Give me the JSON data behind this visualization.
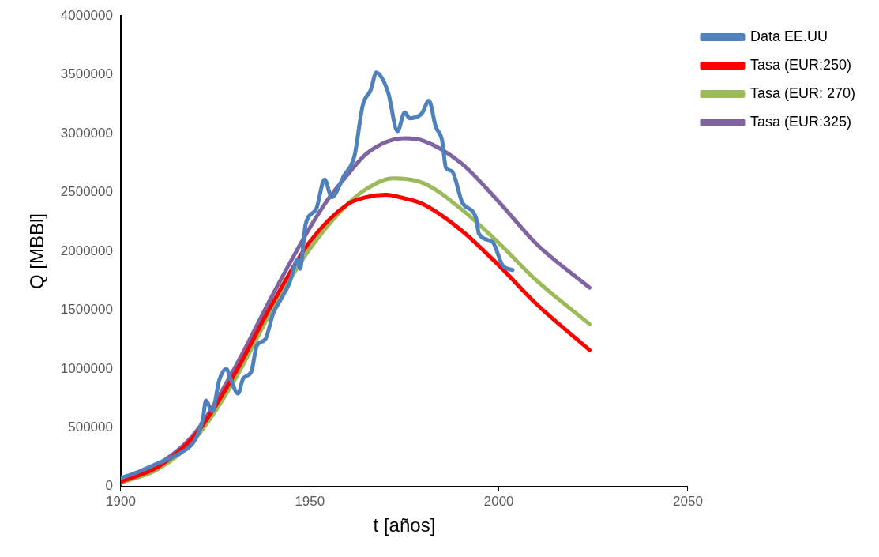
{
  "chart_data": {
    "type": "line",
    "xlabel": "t [años]",
    "ylabel": "Q [MBBl]",
    "xlim": [
      1900,
      2050
    ],
    "xticks": [
      1900,
      1950,
      2000,
      2050
    ],
    "ylim": [
      0,
      4000000
    ],
    "yticks": [
      0,
      500000,
      1000000,
      1500000,
      2000000,
      2500000,
      3000000,
      3500000,
      4000000
    ],
    "grid": false,
    "legend": "top right",
    "marker": "none",
    "line_style": "solid",
    "series": [
      {
        "name": "Data EE.UU",
        "color": "#4f81bd",
        "x": [
          1900,
          1905,
          1910,
          1916,
          1919.5,
          1921.7,
          1922.5,
          1924.2,
          1926,
          1927.9,
          1929.2,
          1931,
          1932.4,
          1934.5,
          1936,
          1938.2,
          1940.3,
          1942.5,
          1944.6,
          1946.8,
          1947.4,
          1948.9,
          1951.7,
          1953.9,
          1955.8,
          1959,
          1961.8,
          1964,
          1966.1,
          1967.6,
          1969.3,
          1970.8,
          1973.2,
          1975.1,
          1976.4,
          1979.6,
          1981.5,
          1983.3,
          1985,
          1986,
          1987.6,
          1990.4,
          1994,
          1994.7,
          1998.3,
          2001,
          2003.6
        ],
        "values": [
          70000,
          130000,
          200000,
          290000,
          390000,
          570000,
          730000,
          640000,
          900000,
          1000000,
          900000,
          790000,
          920000,
          975000,
          1200000,
          1250000,
          1470000,
          1600000,
          1730000,
          1930000,
          1850000,
          2230000,
          2360000,
          2610000,
          2460000,
          2640000,
          2810000,
          3240000,
          3370000,
          3520000,
          3460000,
          3340000,
          3020000,
          3180000,
          3130000,
          3170000,
          3280000,
          3060000,
          2940000,
          2710000,
          2680000,
          2410000,
          2280000,
          2150000,
          2080000,
          1880000,
          1840000
        ]
      },
      {
        "name": "Tasa (EUR:250)",
        "color": "#ff0000",
        "x": [
          1900,
          1910,
          1920,
          1930,
          1940,
          1950,
          1960,
          1965,
          1970,
          1975,
          1980,
          1990,
          2000,
          2010,
          2024
        ],
        "values": [
          40000,
          170000,
          450000,
          950000,
          1550000,
          2080000,
          2400000,
          2460000,
          2480000,
          2450000,
          2400000,
          2180000,
          1880000,
          1550000,
          1160000
        ]
      },
      {
        "name": "Tasa (EUR: 270)",
        "color": "#9bbb59",
        "x": [
          1900,
          1910,
          1920,
          1930,
          1940,
          1950,
          1960,
          1965,
          1972,
          1980,
          1990,
          2000,
          2010,
          2024
        ],
        "values": [
          30000,
          150000,
          420000,
          900000,
          1500000,
          2020000,
          2400000,
          2530000,
          2620000,
          2580000,
          2360000,
          2070000,
          1750000,
          1380000
        ]
      },
      {
        "name": "Tasa (EUR:325)",
        "color": "#8064a2",
        "x": [
          1900,
          1910,
          1920,
          1930,
          1940,
          1950,
          1955,
          1960,
          1965,
          1975,
          1980,
          1990,
          2000,
          2010,
          2024
        ],
        "values": [
          50000,
          190000,
          470000,
          1000000,
          1620000,
          2200000,
          2450000,
          2650000,
          2830000,
          2960000,
          2940000,
          2750000,
          2420000,
          2060000,
          1690000
        ]
      }
    ]
  }
}
